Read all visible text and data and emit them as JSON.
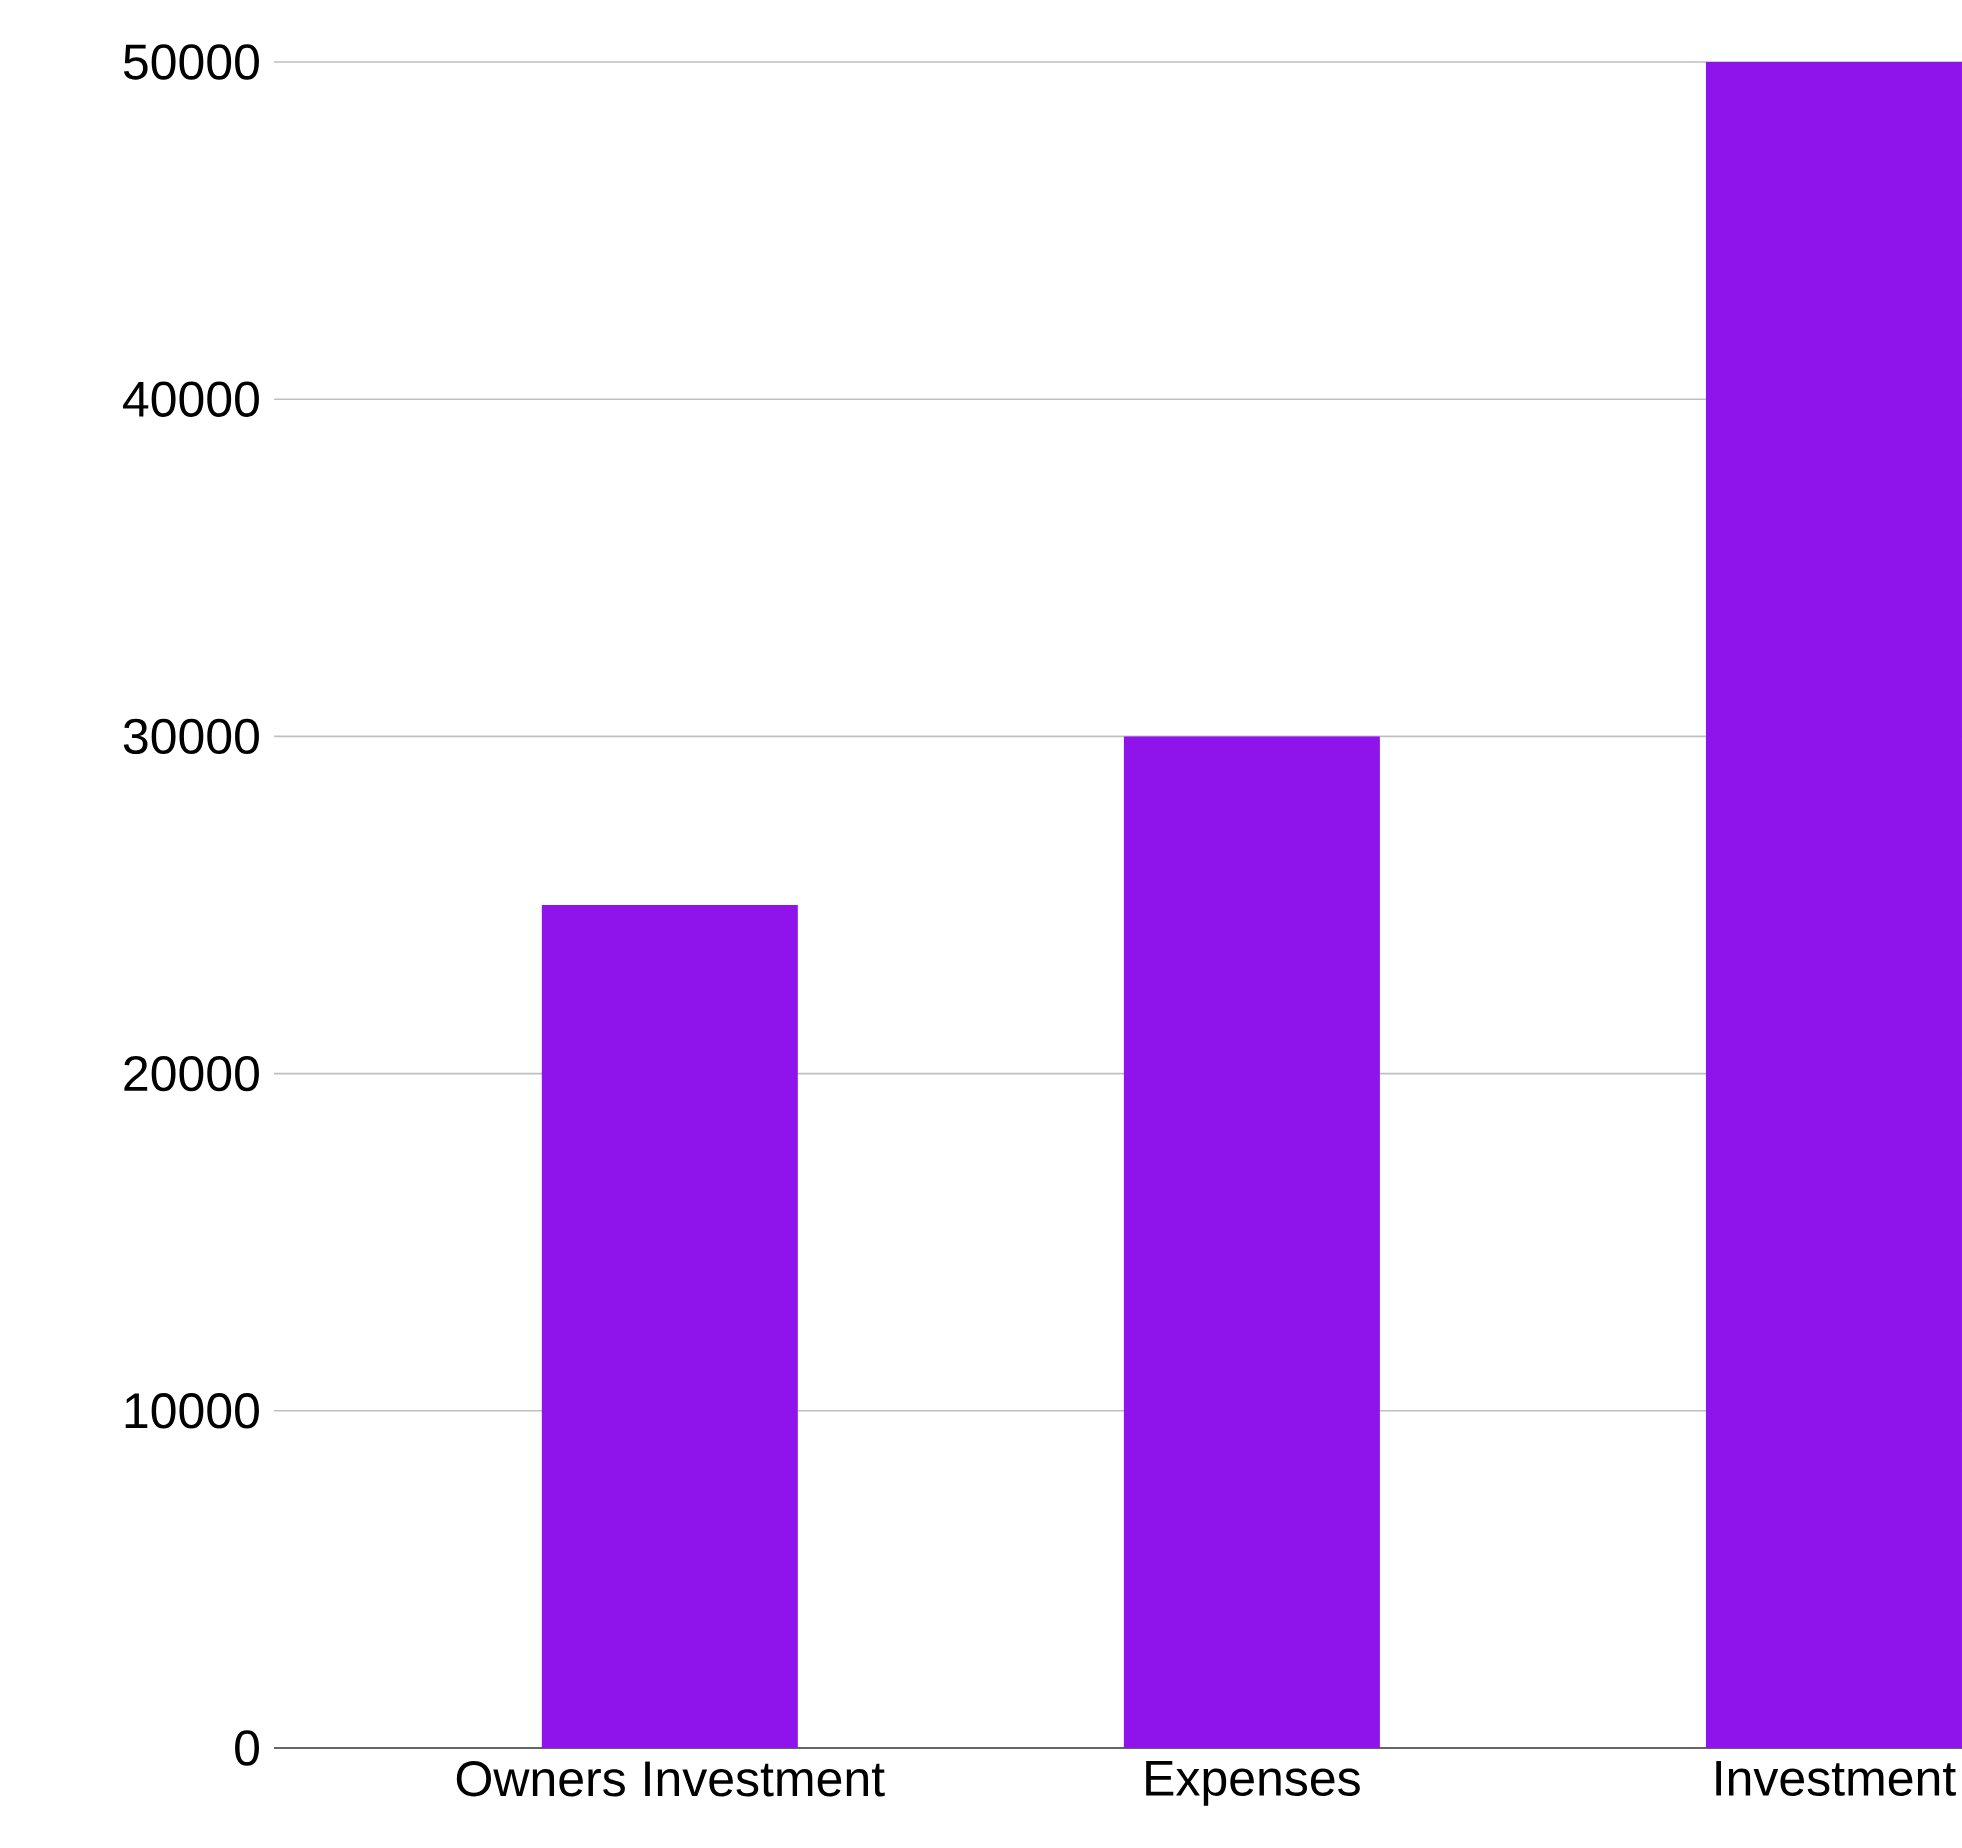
{
  "chart_data": {
    "type": "bar",
    "categories": [
      "Owners Investment",
      "Expenses",
      "Investment"
    ],
    "values": [
      25000,
      30000,
      50000
    ],
    "color": "#8f14ec",
    "ylim": [
      0,
      50000
    ],
    "yticks": [
      0,
      10000,
      20000,
      30000,
      40000,
      50000
    ],
    "grid": "y"
  }
}
